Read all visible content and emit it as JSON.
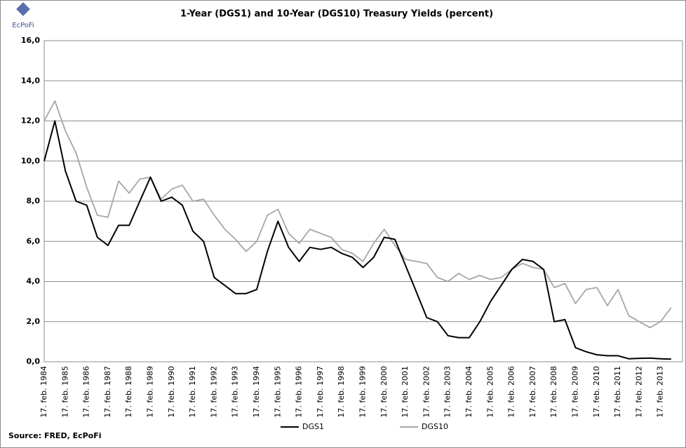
{
  "logo_text": "EcPoFi",
  "source": "Source: FRED,  EcPoFi",
  "chart_data": {
    "type": "line",
    "title": "1-Year (DGS1) and 10-Year (DGS10) Treasury Yields (percent)",
    "categories": [
      "17. feb. 1984",
      null,
      "17. feb. 1985",
      null,
      "17. feb. 1986",
      null,
      "17. feb. 1987",
      null,
      "17. feb. 1988",
      null,
      "17. feb. 1989",
      null,
      "17. feb. 1990",
      null,
      "17. feb. 1991",
      null,
      "17. feb. 1992",
      null,
      "17. feb. 1993",
      null,
      "17. feb. 1994",
      null,
      "17. feb. 1995",
      null,
      "17. feb. 1996",
      null,
      "17. feb. 1997",
      null,
      "17. feb. 1998",
      null,
      "17. feb. 1999",
      null,
      "17. feb. 2000",
      null,
      "17. feb. 2001",
      null,
      "17. feb. 2002",
      null,
      "17. feb. 2003",
      null,
      "17. feb. 2004",
      null,
      "17. feb. 2005",
      null,
      "17. feb. 2006",
      null,
      "17. feb. 2007",
      null,
      "17. feb. 2008",
      null,
      "17. feb. 2009",
      null,
      "17. feb. 2010",
      null,
      "17. feb. 2011",
      null,
      "17. feb. 2012",
      null,
      "17. feb. 2013",
      null
    ],
    "series": [
      {
        "name": "DGS1",
        "color": "#000000",
        "values": [
          10.0,
          12.0,
          9.5,
          8.0,
          7.8,
          6.2,
          5.8,
          6.8,
          6.8,
          8.0,
          9.2,
          8.0,
          8.2,
          7.8,
          6.5,
          6.0,
          4.2,
          3.8,
          3.4,
          3.4,
          3.6,
          5.5,
          7.0,
          5.7,
          5.0,
          5.7,
          5.6,
          5.7,
          5.4,
          5.2,
          4.7,
          5.2,
          6.2,
          6.1,
          4.8,
          3.5,
          2.2,
          2.0,
          1.3,
          1.2,
          1.2,
          2.0,
          3.0,
          3.8,
          4.6,
          5.1,
          5.0,
          4.6,
          2.0,
          2.1,
          0.7,
          0.5,
          0.35,
          0.3,
          0.3,
          0.15,
          0.17,
          0.18,
          0.15,
          0.13
        ]
      },
      {
        "name": "DGS10",
        "color": "#a6a6a6",
        "values": [
          12.0,
          13.0,
          11.5,
          10.4,
          8.7,
          7.3,
          7.2,
          9.0,
          8.4,
          9.1,
          9.2,
          8.1,
          8.6,
          8.8,
          8.0,
          8.1,
          7.3,
          6.6,
          6.1,
          5.5,
          6.0,
          7.3,
          7.6,
          6.4,
          5.9,
          6.6,
          6.4,
          6.2,
          5.6,
          5.4,
          5.0,
          5.9,
          6.6,
          5.8,
          5.1,
          5.0,
          4.9,
          4.2,
          4.0,
          4.4,
          4.1,
          4.3,
          4.1,
          4.2,
          4.6,
          4.9,
          4.7,
          4.6,
          3.7,
          3.9,
          2.9,
          3.6,
          3.7,
          2.8,
          3.6,
          2.3,
          2.0,
          1.7,
          2.0,
          2.7
        ]
      }
    ],
    "ylim": [
      0,
      16
    ],
    "yticks": [
      {
        "value": 0,
        "label": "0,0"
      },
      {
        "value": 2,
        "label": "2,0"
      },
      {
        "value": 4,
        "label": "4,0"
      },
      {
        "value": 6,
        "label": "6,0"
      },
      {
        "value": 8,
        "label": "8,0"
      },
      {
        "value": 10,
        "label": "10,0"
      },
      {
        "value": 12,
        "label": "12,0"
      },
      {
        "value": 14,
        "label": "14,0"
      },
      {
        "value": 16,
        "label": "16,0"
      }
    ],
    "grid": true,
    "legend": "bottom"
  }
}
